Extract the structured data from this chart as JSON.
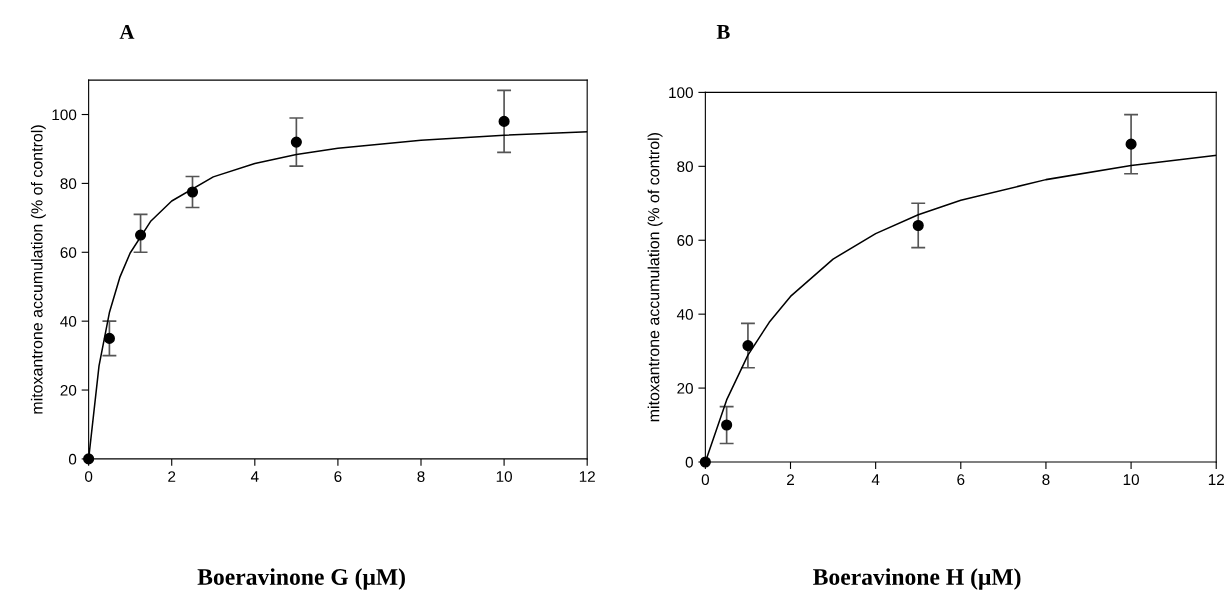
{
  "chart_data": [
    {
      "type": "scatter",
      "title": "A",
      "xlabel": "Boeravinone G (μM)",
      "ylabel": "mitoxantrone accumulation (% of control)",
      "xlim": [
        0,
        12
      ],
      "xticks": [
        0,
        2,
        4,
        6,
        8,
        10,
        12
      ],
      "ylim": [
        0,
        110
      ],
      "yticks": [
        0,
        20,
        40,
        60,
        80,
        100
      ],
      "grid": false,
      "legend": false,
      "series": [
        {
          "marker": "circle",
          "color": "#000000",
          "x": [
            0,
            0.5,
            1.25,
            2.5,
            5,
            10
          ],
          "values": [
            0,
            35,
            65,
            77.5,
            92,
            98
          ],
          "errors": [
            null,
            [
              30,
              40
            ],
            [
              60,
              71
            ],
            [
              73,
              82
            ],
            [
              85,
              99
            ],
            [
              89,
              107
            ]
          ]
        },
        {
          "type": "line",
          "color": "#000000",
          "x": [
            0,
            0.25,
            0.5,
            0.75,
            1,
            1.5,
            2,
            3,
            4,
            5,
            6,
            8,
            10,
            12
          ],
          "values": [
            0,
            27,
            42.5,
            52.7,
            59.8,
            69.1,
            74.9,
            81.9,
            85.8,
            88.4,
            90.2,
            92.5,
            94.0,
            95.0
          ]
        }
      ]
    },
    {
      "type": "scatter",
      "title": "B",
      "xlabel": "Boeravinone H (μM)",
      "ylabel": "mitoxantrone accumulation (% of control)",
      "xlim": [
        0,
        12
      ],
      "xticks": [
        0,
        2,
        4,
        6,
        8,
        10,
        12
      ],
      "ylim": [
        0,
        100
      ],
      "yticks": [
        0,
        20,
        40,
        60,
        80,
        100
      ],
      "grid": false,
      "legend": false,
      "series": [
        {
          "marker": "circle",
          "color": "#000000",
          "x": [
            0,
            0.5,
            1,
            5,
            10
          ],
          "values": [
            0,
            10,
            31.5,
            64,
            86
          ],
          "errors": [
            null,
            [
              5,
              15
            ],
            [
              25.5,
              37.5
            ],
            [
              58,
              70
            ],
            [
              78,
              94
            ]
          ]
        },
        {
          "type": "line",
          "color": "#000000",
          "x": [
            0,
            0.5,
            1,
            1.5,
            2,
            3,
            4,
            5,
            6,
            8,
            10,
            12
          ],
          "values": [
            0,
            16.8,
            28.9,
            37.8,
            44.8,
            54.9,
            61.8,
            66.9,
            70.8,
            76.4,
            80.2,
            83.0
          ]
        }
      ]
    }
  ]
}
